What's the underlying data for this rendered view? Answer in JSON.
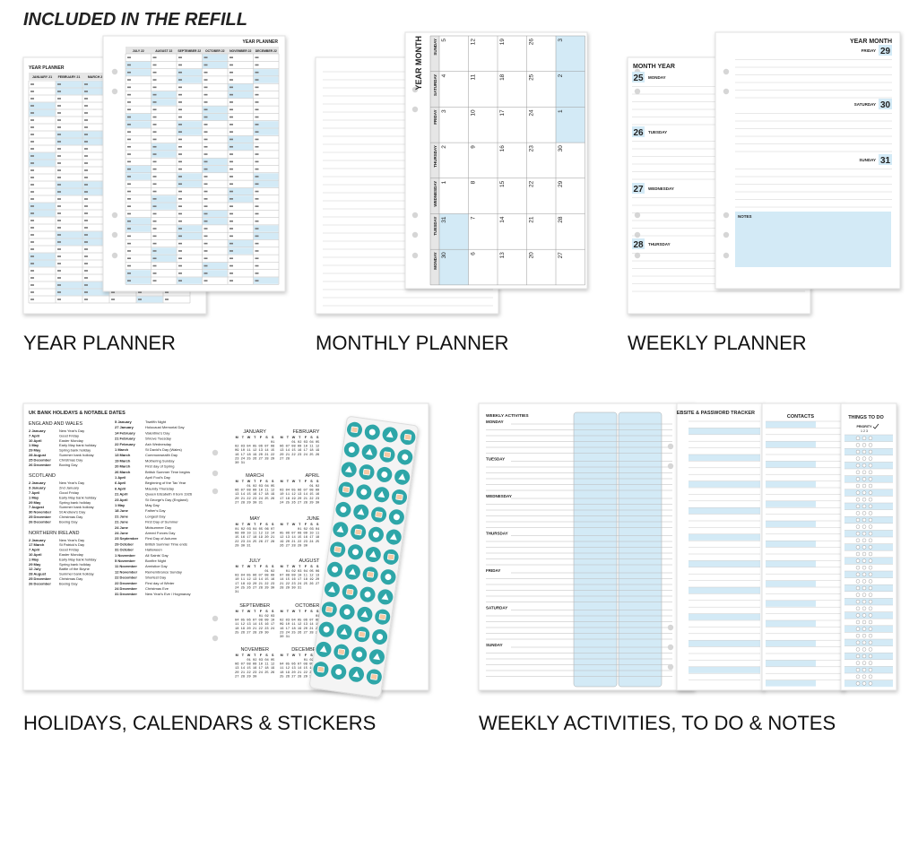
{
  "heading": "INCLUDED IN THE REFILL",
  "year_planner": {
    "caption": "YEAR PLANNER",
    "back": {
      "title": "YEAR PLANNER",
      "months": [
        "JANUARY 21",
        "FEBRUARY 21",
        "MARCH 21"
      ]
    },
    "front": {
      "title": "YEAR PLANNER",
      "months": [
        "JULY 22",
        "AUGUST 22",
        "SEPTEMBER 22",
        "OCTOBER 22",
        "NOVEMBER 22",
        "DECEMBER 22"
      ]
    }
  },
  "monthly_planner": {
    "caption": "MONTHLY PLANNER",
    "title": "YEAR MONTH",
    "rows": [
      {
        "day": "SUNDAY",
        "dates": [
          "5",
          "12",
          "19",
          "26",
          "3"
        ],
        "shaded": [
          4
        ]
      },
      {
        "day": "SATURDAY",
        "dates": [
          "4",
          "11",
          "18",
          "25",
          "2"
        ],
        "shaded": [
          4
        ]
      },
      {
        "day": "FRIDAY",
        "dates": [
          "3",
          "10",
          "17",
          "24",
          "1"
        ],
        "shaded": [
          4
        ]
      },
      {
        "day": "THURSDAY",
        "dates": [
          "2",
          "9",
          "16",
          "23",
          "30"
        ],
        "shaded": []
      },
      {
        "day": "WEDNESDAY",
        "dates": [
          "1",
          "8",
          "15",
          "22",
          "29"
        ],
        "shaded": []
      },
      {
        "day": "TUESDAY",
        "dates": [
          "31",
          "7",
          "14",
          "21",
          "28"
        ],
        "shaded": [
          0
        ]
      },
      {
        "day": "MONDAY",
        "dates": [
          "30",
          "6",
          "13",
          "20",
          "27"
        ],
        "shaded": [
          0
        ]
      }
    ]
  },
  "weekly_planner": {
    "caption": "WEEKLY PLANNER",
    "left": {
      "title": "MONTH YEAR",
      "days": [
        {
          "date": "25",
          "day": "MONDAY"
        },
        {
          "date": "26",
          "day": "TUESDAY"
        },
        {
          "date": "27",
          "day": "WEDNESDAY"
        },
        {
          "date": "28",
          "day": "THURSDAY"
        }
      ]
    },
    "right": {
      "title": "YEAR MONTH",
      "days": [
        {
          "day": "FRIDAY",
          "date": "29"
        },
        {
          "day": "SATURDAY",
          "date": "30"
        },
        {
          "day": "SUNDAY",
          "date": "31"
        }
      ],
      "notes": "NOTES"
    }
  },
  "holidays": {
    "caption": "HOLIDAYS, CALENDARS & STICKERS",
    "title": "UK BANK HOLIDAYS & NOTABLE DATES",
    "regions": [
      {
        "name": "ENGLAND AND WALES",
        "entries": [
          [
            "2 January",
            "New Year's Day"
          ],
          [
            "7 April",
            "Good Friday"
          ],
          [
            "10 April",
            "Easter Monday"
          ],
          [
            "1 May",
            "Early May bank holiday"
          ],
          [
            "29 May",
            "Spring bank holiday"
          ],
          [
            "28 August",
            "Summer bank holiday"
          ],
          [
            "25 December",
            "Christmas Day"
          ],
          [
            "26 December",
            "Boxing Day"
          ]
        ]
      },
      {
        "name": "SCOTLAND",
        "entries": [
          [
            "2 January",
            "New Year's Day"
          ],
          [
            "3 January",
            "2nd January"
          ],
          [
            "7 April",
            "Good Friday"
          ],
          [
            "1 May",
            "Early May bank holiday"
          ],
          [
            "29 May",
            "Spring bank holiday"
          ],
          [
            "7 August",
            "Summer bank holiday"
          ],
          [
            "30 November",
            "St Andrew's Day"
          ],
          [
            "25 December",
            "Christmas Day"
          ],
          [
            "26 December",
            "Boxing Day"
          ]
        ]
      },
      {
        "name": "NORTHERN IRELAND",
        "entries": [
          [
            "2 January",
            "New Year's Day"
          ],
          [
            "17 March",
            "St Patrick's Day"
          ],
          [
            "7 April",
            "Good Friday"
          ],
          [
            "10 April",
            "Easter Monday"
          ],
          [
            "1 May",
            "Early May bank holiday"
          ],
          [
            "29 May",
            "Spring bank holiday"
          ],
          [
            "12 July",
            "Battle of the Boyne"
          ],
          [
            "28 August",
            "Summer bank holiday"
          ],
          [
            "25 December",
            "Christmas Day"
          ],
          [
            "26 December",
            "Boxing Day"
          ]
        ]
      }
    ],
    "notable": [
      [
        "5 January",
        "Twelfth Night"
      ],
      [
        "27 January",
        "Holocaust Memorial Day"
      ],
      [
        "14 February",
        "Valentine's Day"
      ],
      [
        "21 February",
        "Shrove Tuesday"
      ],
      [
        "22 February",
        "Ash Wednesday"
      ],
      [
        "1 March",
        "St David's Day (Wales)"
      ],
      [
        "13 March",
        "Commonwealth Day"
      ],
      [
        "19 March",
        "Mothering Sunday"
      ],
      [
        "20 March",
        "First day of Spring"
      ],
      [
        "26 March",
        "British Summer Time begins"
      ],
      [
        "1 April",
        "April Fool's Day"
      ],
      [
        "6 April",
        "Beginning of the Tax Year"
      ],
      [
        "6 April",
        "Maundy Thursday"
      ],
      [
        "21 April",
        "Queen Elizabeth II born 1926"
      ],
      [
        "23 April",
        "St George's Day (England)"
      ],
      [
        "1 May",
        "May Day"
      ],
      [
        "18 June",
        "Father's Day"
      ],
      [
        "21 June",
        "Longest Day"
      ],
      [
        "21 June",
        "First Day of Summer"
      ],
      [
        "24 June",
        "Midsummer Day"
      ],
      [
        "24 June",
        "Armed Forces Day"
      ],
      [
        "23 September",
        "First Day of Autumn"
      ],
      [
        "29 October",
        "British Summer Time ends"
      ],
      [
        "31 October",
        "Halloween"
      ],
      [
        "1 November",
        "All Saints' Day"
      ],
      [
        "5 November",
        "Bonfire Night"
      ],
      [
        "11 November",
        "Armistice Day"
      ],
      [
        "12 November",
        "Remembrance Sunday"
      ],
      [
        "22 December",
        "Shortest Day"
      ],
      [
        "22 December",
        "First day of Winter"
      ],
      [
        "24 December",
        "Christmas Eve"
      ],
      [
        "31 December",
        "New Year's Eve / Hogmanay"
      ]
    ],
    "weekdays": [
      "M",
      "T",
      "W",
      "T",
      "F",
      "S",
      "S"
    ],
    "calendar": [
      {
        "month": "JANUARY",
        "weeks": [
          "01",
          "02 03 04 05 06 07 08",
          "09 10 11 12 13 14 15",
          "16 17 18 19 20 21 22",
          "23 24 25 26 27 28 29",
          "30 31"
        ]
      },
      {
        "month": "FEBRUARY",
        "weeks": [
          "01 02 03 04 05",
          "06 07 08 09 10 11 12",
          "13 14 15 16 17 18 19",
          "20 21 22 23 24 25 26",
          "27 28"
        ]
      },
      {
        "month": "MARCH",
        "weeks": [
          "01 02 03 04 05",
          "06 07 08 09 10 11 12",
          "13 14 15 16 17 18 19",
          "20 21 22 23 24 25 26",
          "27 28 29 30 31"
        ]
      },
      {
        "month": "APRIL",
        "weeks": [
          "01 02",
          "03 04 05 06 07 08 09",
          "10 11 12 13 14 15 16",
          "17 18 19 20 21 22 23",
          "24 25 26 27 28 29 30"
        ]
      },
      {
        "month": "MAY",
        "weeks": [
          "01 02 03 04 05 06 07",
          "08 09 10 11 12 13 14",
          "15 16 17 18 19 20 21",
          "22 23 24 25 26 27 28",
          "29 30 31"
        ]
      },
      {
        "month": "JUNE",
        "weeks": [
          "01 02 03 04",
          "05 06 07 08 09 10 11",
          "12 13 14 15 16 17 18",
          "19 20 21 22 23 24 25",
          "26 27 28 29 30"
        ]
      },
      {
        "month": "JULY",
        "weeks": [
          "01 02",
          "03 04 05 06 07 08 09",
          "10 11 12 13 14 15 16",
          "17 18 19 20 21 22 23",
          "24 25 26 27 28 29 30",
          "31"
        ]
      },
      {
        "month": "AUGUST",
        "weeks": [
          "01 02 03 04 05 06",
          "07 08 09 10 11 12 13",
          "14 15 16 17 18 19 20",
          "21 22 23 24 25 26 27",
          "28 29 30 31"
        ]
      },
      {
        "month": "SEPTEMBER",
        "weeks": [
          "01 02 03",
          "04 05 06 07 08 09 10",
          "11 12 13 14 15 16 17",
          "18 19 20 21 22 23 24",
          "25 26 27 28 29 30"
        ]
      },
      {
        "month": "OCTOBER",
        "weeks": [
          "01",
          "02 03 04 05 06 07 08",
          "09 10 11 12 13 14 15",
          "16 17 18 19 20 21 22",
          "23 24 25 26 27 28 29",
          "30 31"
        ]
      },
      {
        "month": "NOVEMBER",
        "weeks": [
          "01 02 03 04 05",
          "06 07 08 09 10 11 12",
          "13 14 15 16 17 18 19",
          "20 21 22 23 24 25 26",
          "27 28 29 30"
        ]
      },
      {
        "month": "DECEMBER",
        "weeks": [
          "01 02 03",
          "04 05 06 07 08 09 10",
          "11 12 13 14 15 16 17",
          "18 19 20 21 22 23 24",
          "25 26 27 28 29 30 31"
        ]
      }
    ]
  },
  "activities": {
    "caption": "WEEKLY ACTIVITIES, TO DO & NOTES",
    "title": "WEEKLY ACTIVITIES",
    "days": [
      "MONDAY",
      "TUESDAY",
      "WEDNESDAY",
      "THURSDAY",
      "FRIDAY",
      "SATURDAY",
      "SUNDAY"
    ],
    "tracker": "WEBSITE & PASSWORD TRACKER",
    "contacts": "CONTACTS",
    "todo": {
      "title": "THINGS TO DO",
      "priority": "PRIORITY",
      "levels": "1 2 3"
    }
  }
}
